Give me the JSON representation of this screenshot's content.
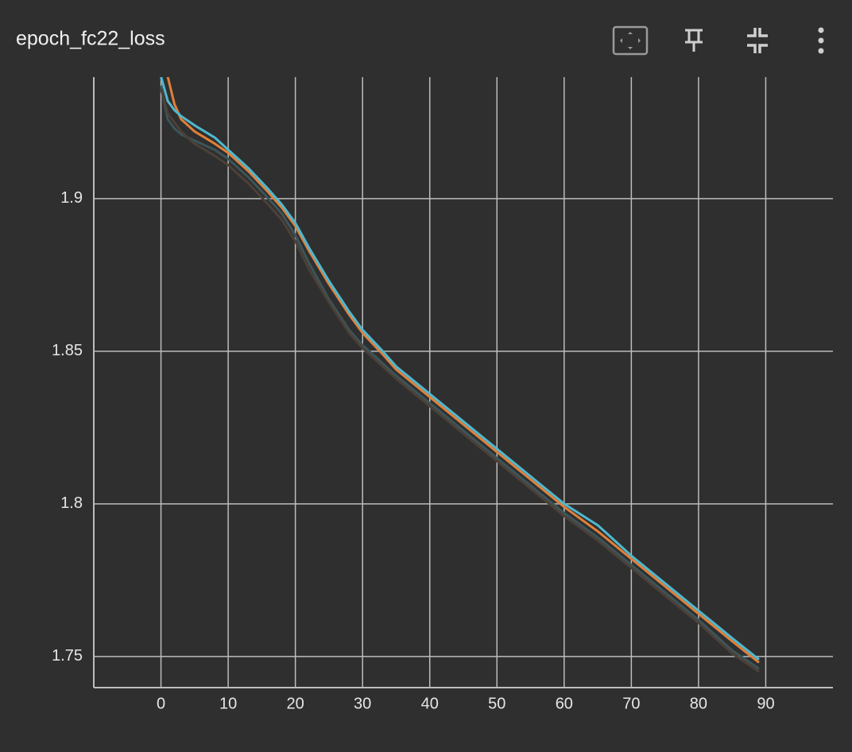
{
  "chart_data": {
    "type": "line",
    "title": "epoch_fc22_loss",
    "x": [
      0,
      1,
      2,
      3,
      5,
      8,
      10,
      13,
      16,
      18,
      20,
      22,
      25,
      28,
      30,
      33,
      35,
      40,
      45,
      50,
      55,
      60,
      65,
      70,
      75,
      80,
      85,
      89
    ],
    "series": [
      {
        "color": "#3c5559",
        "values": [
          1.937,
          1.926,
          1.923,
          1.921,
          1.919,
          1.916,
          1.913,
          1.907,
          1.9,
          1.895,
          1.888,
          1.879,
          1.867,
          1.857,
          1.852,
          1.846,
          1.842,
          1.833,
          1.824,
          1.815,
          1.806,
          1.797,
          1.789,
          1.78,
          1.771,
          1.762,
          1.752,
          1.746
        ]
      },
      {
        "color": "#4d4038",
        "values": [
          1.936,
          1.928,
          1.925,
          1.922,
          1.918,
          1.914,
          1.911,
          1.905,
          1.898,
          1.893,
          1.886,
          1.877,
          1.866,
          1.856,
          1.851,
          1.845,
          1.841,
          1.832,
          1.823,
          1.814,
          1.805,
          1.796,
          1.788,
          1.779,
          1.77,
          1.761,
          1.751,
          1.745
        ]
      },
      {
        "color": "#e0803a",
        "values": [
          1.95,
          1.94,
          1.931,
          1.926,
          1.922,
          1.918,
          1.915,
          1.909,
          1.902,
          1.897,
          1.891,
          1.883,
          1.872,
          1.862,
          1.856,
          1.849,
          1.844,
          1.835,
          1.826,
          1.817,
          1.808,
          1.799,
          1.791,
          1.782,
          1.773,
          1.764,
          1.755,
          1.748
        ]
      },
      {
        "color": "#4fb8cf",
        "values": [
          1.94,
          1.932,
          1.929,
          1.927,
          1.924,
          1.92,
          1.916,
          1.91,
          1.903,
          1.898,
          1.892,
          1.884,
          1.873,
          1.863,
          1.857,
          1.85,
          1.845,
          1.836,
          1.827,
          1.818,
          1.809,
          1.8,
          1.793,
          1.783,
          1.774,
          1.765,
          1.756,
          1.749
        ]
      }
    ],
    "xlim": [
      -10,
      100
    ],
    "xticks": [
      0,
      10,
      20,
      30,
      40,
      50,
      60,
      70,
      80,
      90
    ],
    "ylim": [
      1.7398,
      1.9398
    ],
    "yticks": [
      1.75,
      1.8,
      1.85,
      1.9
    ],
    "grid": true
  }
}
